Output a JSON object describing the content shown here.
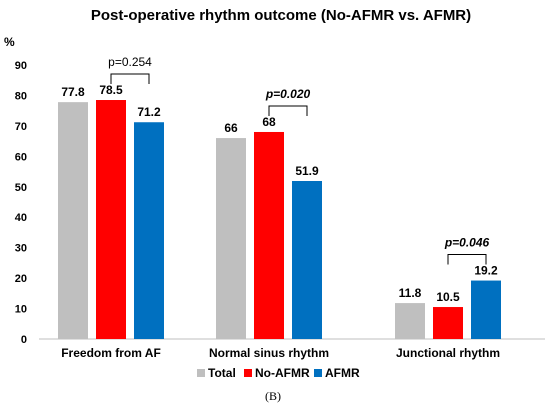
{
  "chart_data": {
    "type": "bar",
    "title": "Post-operative rhythm outcome (No-AFMR vs. AFMR)",
    "ylabel_unit": "%",
    "ylim": [
      0,
      90
    ],
    "yticks": [
      0,
      10,
      20,
      30,
      40,
      50,
      60,
      70,
      80,
      90
    ],
    "categories": [
      "Freedom from AF",
      "Normal sinus rhythm",
      "Junctional rhythm"
    ],
    "series": [
      {
        "name": "Total",
        "color": "#BFBFBF",
        "values": [
          77.8,
          66,
          11.8
        ],
        "labels": [
          "77.8",
          "66",
          "11.8"
        ]
      },
      {
        "name": "No-AFMR",
        "color": "#FF0000",
        "values": [
          78.5,
          68,
          10.5
        ],
        "labels": [
          "78.5",
          "68",
          "10.5"
        ]
      },
      {
        "name": "AFMR",
        "color": "#0070C0",
        "values": [
          71.2,
          51.9,
          19.2
        ],
        "labels": [
          "71.2",
          "51.9",
          "19.2"
        ]
      }
    ],
    "annotations": [
      {
        "text": "p=0.254",
        "significant": false
      },
      {
        "text": "p=0.020",
        "significant": true
      },
      {
        "text": "p=0.046",
        "significant": true
      }
    ],
    "legend_position": "bottom",
    "grid": false
  },
  "caption": "(B)"
}
